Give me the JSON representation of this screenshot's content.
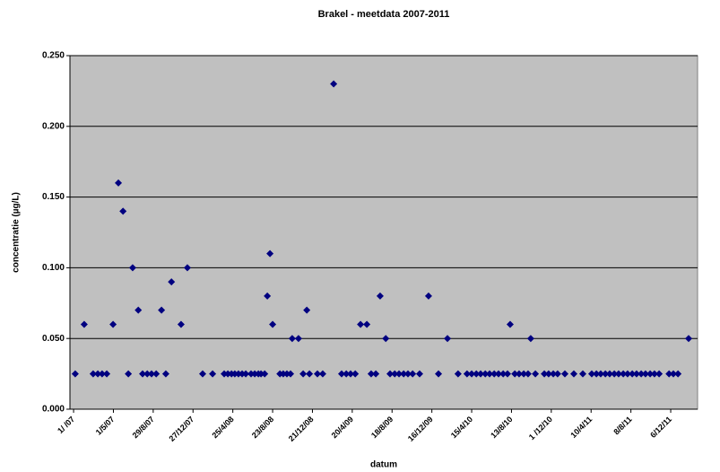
{
  "chart_data": {
    "type": "scatter",
    "title": "Brakel - meetdata 2007-2011",
    "x_label": "datum",
    "y_label": "concentratie (µg/L)",
    "color": "#000080",
    "plot_background": "#c0c0c0",
    "grid": true,
    "xlim": [
      -11,
      1881
    ],
    "ylim": [
      0,
      0.25
    ],
    "yticks": [
      {
        "value": 0,
        "label": "0.000"
      },
      {
        "value": 0.05,
        "label": "0.050"
      },
      {
        "value": 0.1,
        "label": "0.100"
      },
      {
        "value": 0.15,
        "label": "0.150"
      },
      {
        "value": 0.2,
        "label": "0.200"
      },
      {
        "value": 0.25,
        "label": "0.250"
      }
    ],
    "xticks": [
      {
        "value": 0,
        "label": "1/ /07"
      },
      {
        "value": 120,
        "label": "1/5/07"
      },
      {
        "value": 240,
        "label": "29/8/07"
      },
      {
        "value": 360,
        "label": "27/12/07"
      },
      {
        "value": 480,
        "label": "25/4/08"
      },
      {
        "value": 600,
        "label": "23/8/08"
      },
      {
        "value": 720,
        "label": "21/12/08"
      },
      {
        "value": 840,
        "label": "20/4/09"
      },
      {
        "value": 960,
        "label": "18/8/09"
      },
      {
        "value": 1080,
        "label": "16/12/09"
      },
      {
        "value": 1200,
        "label": "15/4/10"
      },
      {
        "value": 1320,
        "label": "13/8/10"
      },
      {
        "value": 1440,
        "label": "1 /12/10"
      },
      {
        "value": 1560,
        "label": "10/4/11"
      },
      {
        "value": 1680,
        "label": "8/8/11"
      },
      {
        "value": 1800,
        "label": "6/12/11"
      }
    ],
    "x": [
      5,
      32,
      59,
      73,
      86,
      100,
      119,
      135,
      149,
      165,
      178,
      195,
      208,
      222,
      235,
      249,
      265,
      278,
      295,
      324,
      343,
      389,
      419,
      454,
      465,
      476,
      486,
      497,
      508,
      519,
      535,
      546,
      557,
      565,
      576,
      584,
      592,
      600,
      622,
      632,
      643,
      654,
      659,
      678,
      692,
      703,
      711,
      735,
      751,
      784,
      808,
      822,
      835,
      849,
      865,
      884,
      897,
      911,
      924,
      941,
      954,
      968,
      981,
      995,
      1008,
      1022,
      1043,
      1070,
      1100,
      1127,
      1159,
      1186,
      1200,
      1214,
      1227,
      1241,
      1254,
      1268,
      1281,
      1295,
      1308,
      1316,
      1330,
      1343,
      1357,
      1370,
      1378,
      1392,
      1419,
      1432,
      1446,
      1459,
      1481,
      1508,
      1535,
      1562,
      1576,
      1589,
      1603,
      1616,
      1630,
      1643,
      1657,
      1670,
      1684,
      1697,
      1711,
      1724,
      1738,
      1751,
      1765,
      1795,
      1808,
      1822,
      1854
    ],
    "values": [
      0.025,
      0.06,
      0.025,
      0.025,
      0.025,
      0.025,
      0.06,
      0.16,
      0.14,
      0.025,
      0.1,
      0.07,
      0.025,
      0.025,
      0.025,
      0.025,
      0.07,
      0.025,
      0.09,
      0.06,
      0.1,
      0.025,
      0.025,
      0.025,
      0.025,
      0.025,
      0.025,
      0.025,
      0.025,
      0.025,
      0.025,
      0.025,
      0.025,
      0.025,
      0.025,
      0.08,
      0.11,
      0.06,
      0.025,
      0.025,
      0.025,
      0.025,
      0.05,
      0.05,
      0.025,
      0.07,
      0.025,
      0.025,
      0.025,
      0.23,
      0.025,
      0.025,
      0.025,
      0.025,
      0.06,
      0.06,
      0.025,
      0.025,
      0.08,
      0.05,
      0.025,
      0.025,
      0.025,
      0.025,
      0.025,
      0.025,
      0.025,
      0.08,
      0.025,
      0.05,
      0.025,
      0.025,
      0.025,
      0.025,
      0.025,
      0.025,
      0.025,
      0.025,
      0.025,
      0.025,
      0.025,
      0.06,
      0.025,
      0.025,
      0.025,
      0.025,
      0.05,
      0.025,
      0.025,
      0.025,
      0.025,
      0.025,
      0.025,
      0.025,
      0.025,
      0.025,
      0.025,
      0.025,
      0.025,
      0.025,
      0.025,
      0.025,
      0.025,
      0.025,
      0.025,
      0.025,
      0.025,
      0.025,
      0.025,
      0.025,
      0.025,
      0.025,
      0.025,
      0.025,
      0.05
    ]
  }
}
